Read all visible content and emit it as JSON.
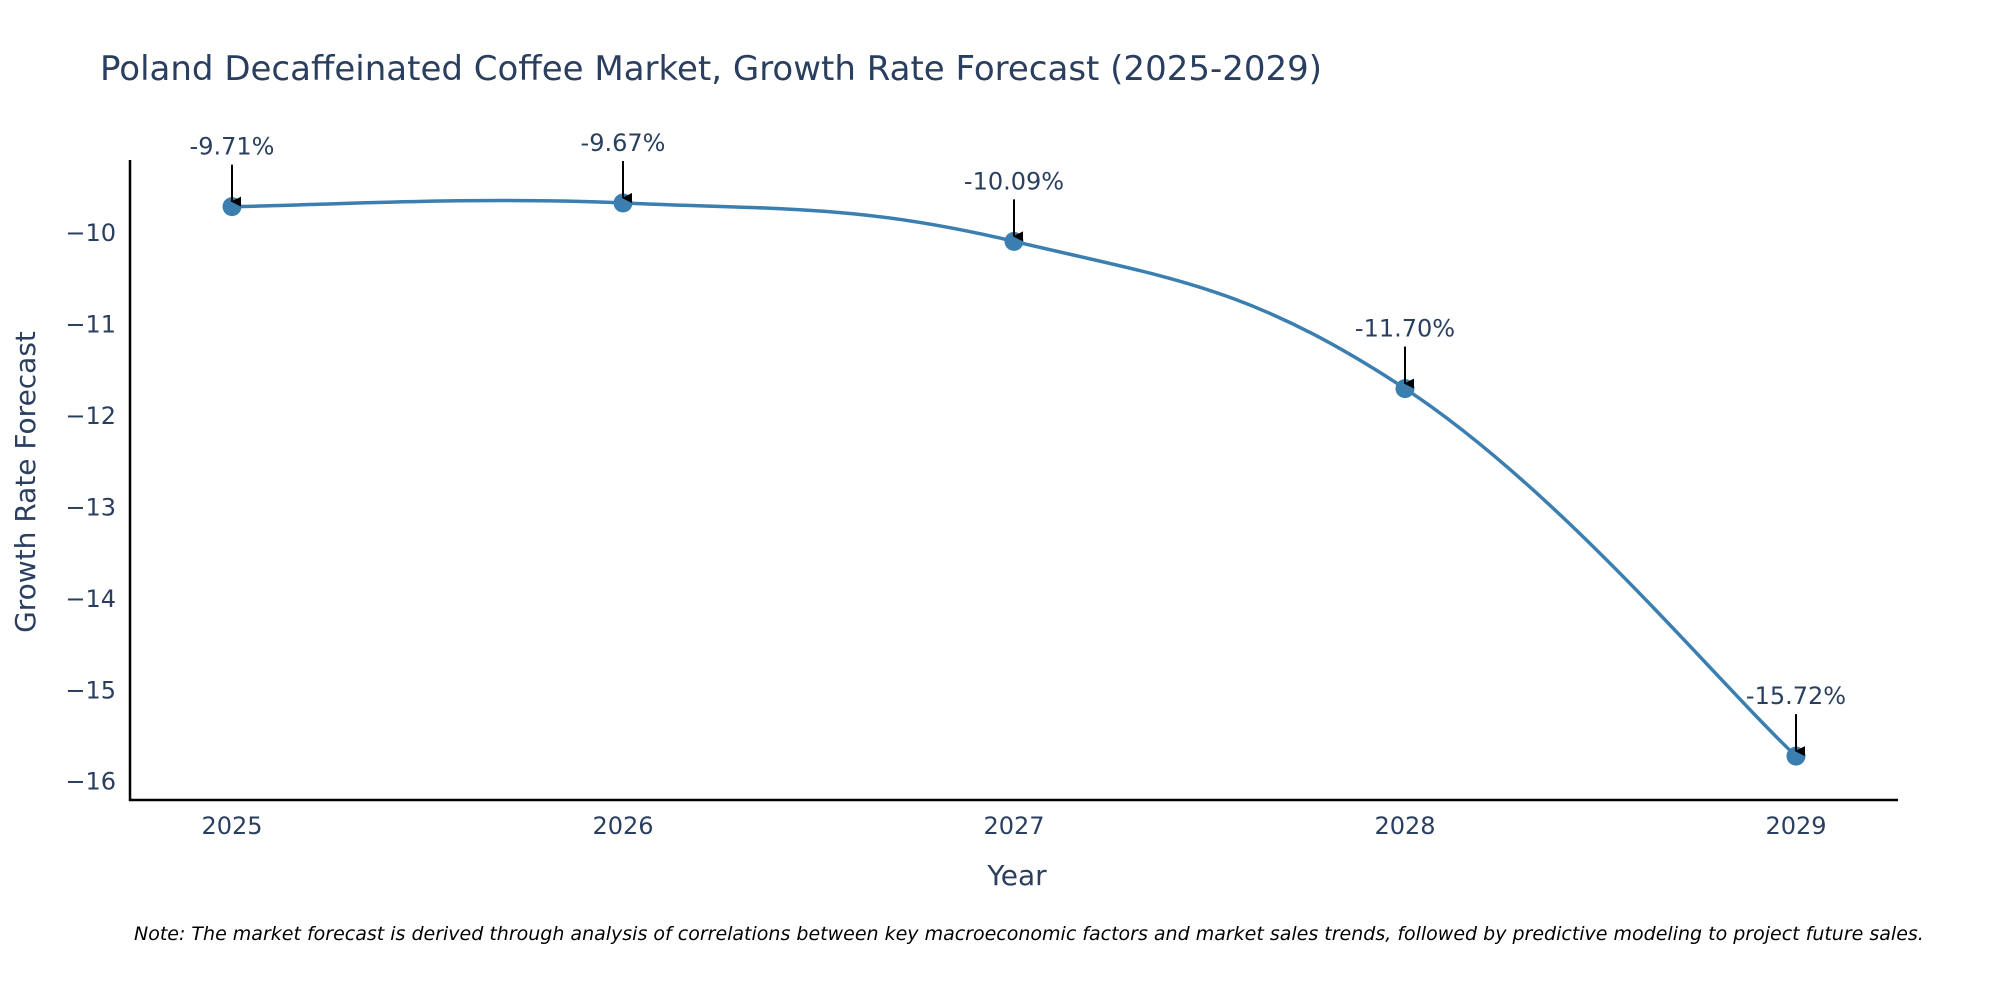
{
  "chart_data": {
    "type": "line",
    "title": "Poland Decaffeinated Coffee Market, Growth Rate Forecast (2025-2029)",
    "xlabel": "Year",
    "ylabel": "Growth Rate Forecast",
    "categories": [
      "2025",
      "2026",
      "2027",
      "2028",
      "2029"
    ],
    "series": [
      {
        "name": "Growth Rate Forecast",
        "values": [
          -9.71,
          -9.67,
          -10.09,
          -11.7,
          -15.72
        ]
      }
    ],
    "data_labels": [
      "-9.71%",
      "-9.67%",
      "-10.09%",
      "-11.70%",
      "-15.72%"
    ],
    "y_ticks": [
      -10,
      -11,
      -12,
      -13,
      -14,
      -15,
      -16
    ],
    "y_tick_labels": [
      "−10",
      "−11",
      "−12",
      "−13",
      "−14",
      "−15",
      "−16"
    ],
    "ylim": [
      -16.2,
      -9.2
    ],
    "grid": false,
    "line_color": "#3b7fb0",
    "marker_color": "#3b7fb0",
    "arrow_color": "#000000",
    "axis_color": "#000000",
    "note": "Note: The market forecast is derived through analysis of correlations between key macroeconomic factors and market sales trends, followed by predictive modeling to project future sales."
  }
}
